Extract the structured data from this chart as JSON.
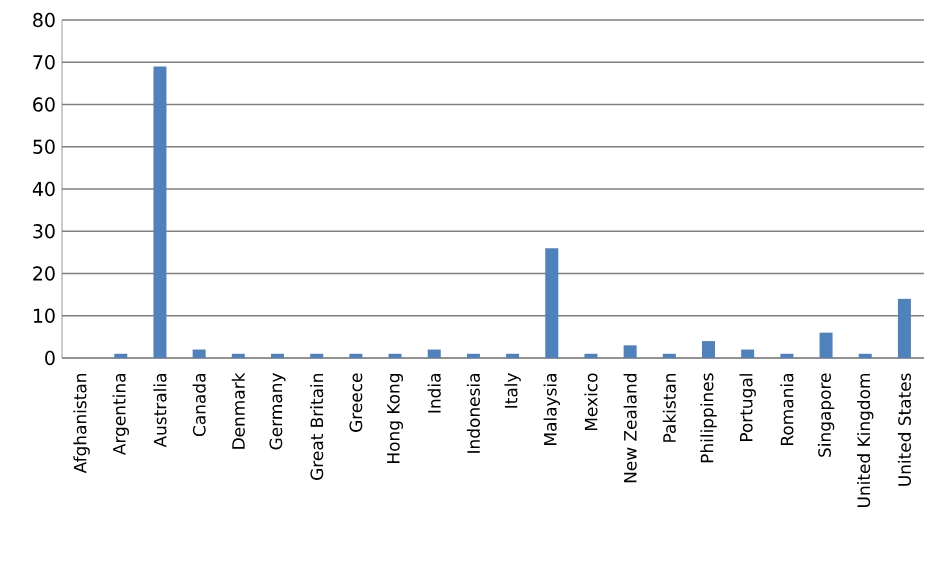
{
  "chart_data": {
    "type": "bar",
    "categories": [
      "Afghanistan",
      "Argentina",
      "Australia",
      "Canada",
      "Denmark",
      "Germany",
      "Great Britain",
      "Greece",
      "Hong Kong",
      "India",
      "Indonesia",
      "Italy",
      "Malaysia",
      "Mexico",
      "New Zealand",
      "Pakistan",
      "Philippines",
      "Portugal",
      "Romania",
      "Singapore",
      "United Kingdom",
      "United States"
    ],
    "values": [
      0,
      1,
      69,
      2,
      1,
      1,
      1,
      1,
      1,
      2,
      1,
      1,
      26,
      1,
      3,
      1,
      4,
      2,
      1,
      6,
      1,
      14
    ],
    "color": "#4f81bd",
    "ylim": [
      0,
      80
    ],
    "yticks": [
      0,
      10,
      20,
      30,
      40,
      50,
      60,
      70,
      80
    ],
    "grid": "y"
  }
}
